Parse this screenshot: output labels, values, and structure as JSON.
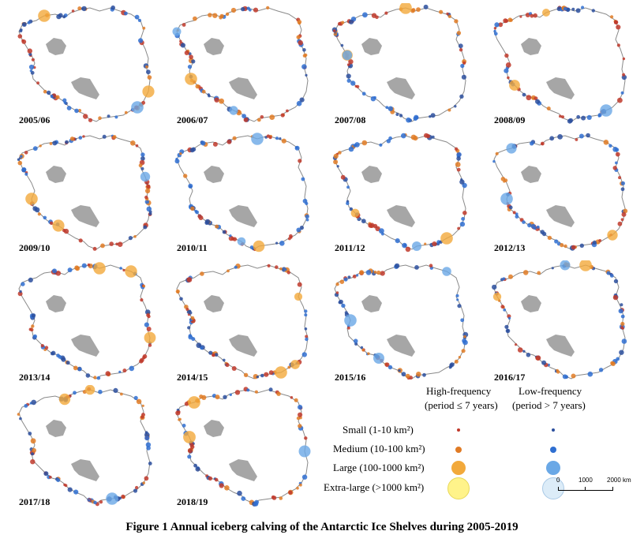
{
  "figure": {
    "caption": "Figure 1  Annual iceberg calving of the Antarctic Ice Shelves during 2005-2019"
  },
  "panels": [
    {
      "label": "2005/06"
    },
    {
      "label": "2006/07"
    },
    {
      "label": "2007/08"
    },
    {
      "label": "2008/09"
    },
    {
      "label": "2009/10"
    },
    {
      "label": "2010/11"
    },
    {
      "label": "2011/12"
    },
    {
      "label": "2012/13"
    },
    {
      "label": "2013/14"
    },
    {
      "label": "2014/15"
    },
    {
      "label": "2015/16"
    },
    {
      "label": "2016/17"
    },
    {
      "label": "2017/18"
    },
    {
      "label": "2018/19"
    }
  ],
  "legend": {
    "high_freq_title": "High-frequency",
    "high_freq_sub": "(period ≤ 7 years)",
    "low_freq_title": "Low-frequency",
    "low_freq_sub": "(period > 7 years)",
    "sizes": [
      {
        "label": "Small (1-10 km²)"
      },
      {
        "label": "Medium (10-100 km²)"
      },
      {
        "label": "Large (100-1000 km²)"
      },
      {
        "label": "Extra-large (>1000 km²)"
      }
    ]
  },
  "scalebar": {
    "ticks": [
      "0",
      "1000",
      "2000 km"
    ]
  },
  "colors": {
    "land": "#ffffff",
    "coast": "#8a8a8a",
    "ice_shelf": "#a6a6a6",
    "high_small": "#c0392b",
    "high_medium": "#e07b25",
    "high_large": "#f2a93b",
    "high_xlarge": "#fff38a",
    "low_small": "#2c4f9e",
    "low_medium": "#2f6fd1",
    "low_large": "#6aa8e6",
    "low_xlarge": "#dcecf8"
  }
}
